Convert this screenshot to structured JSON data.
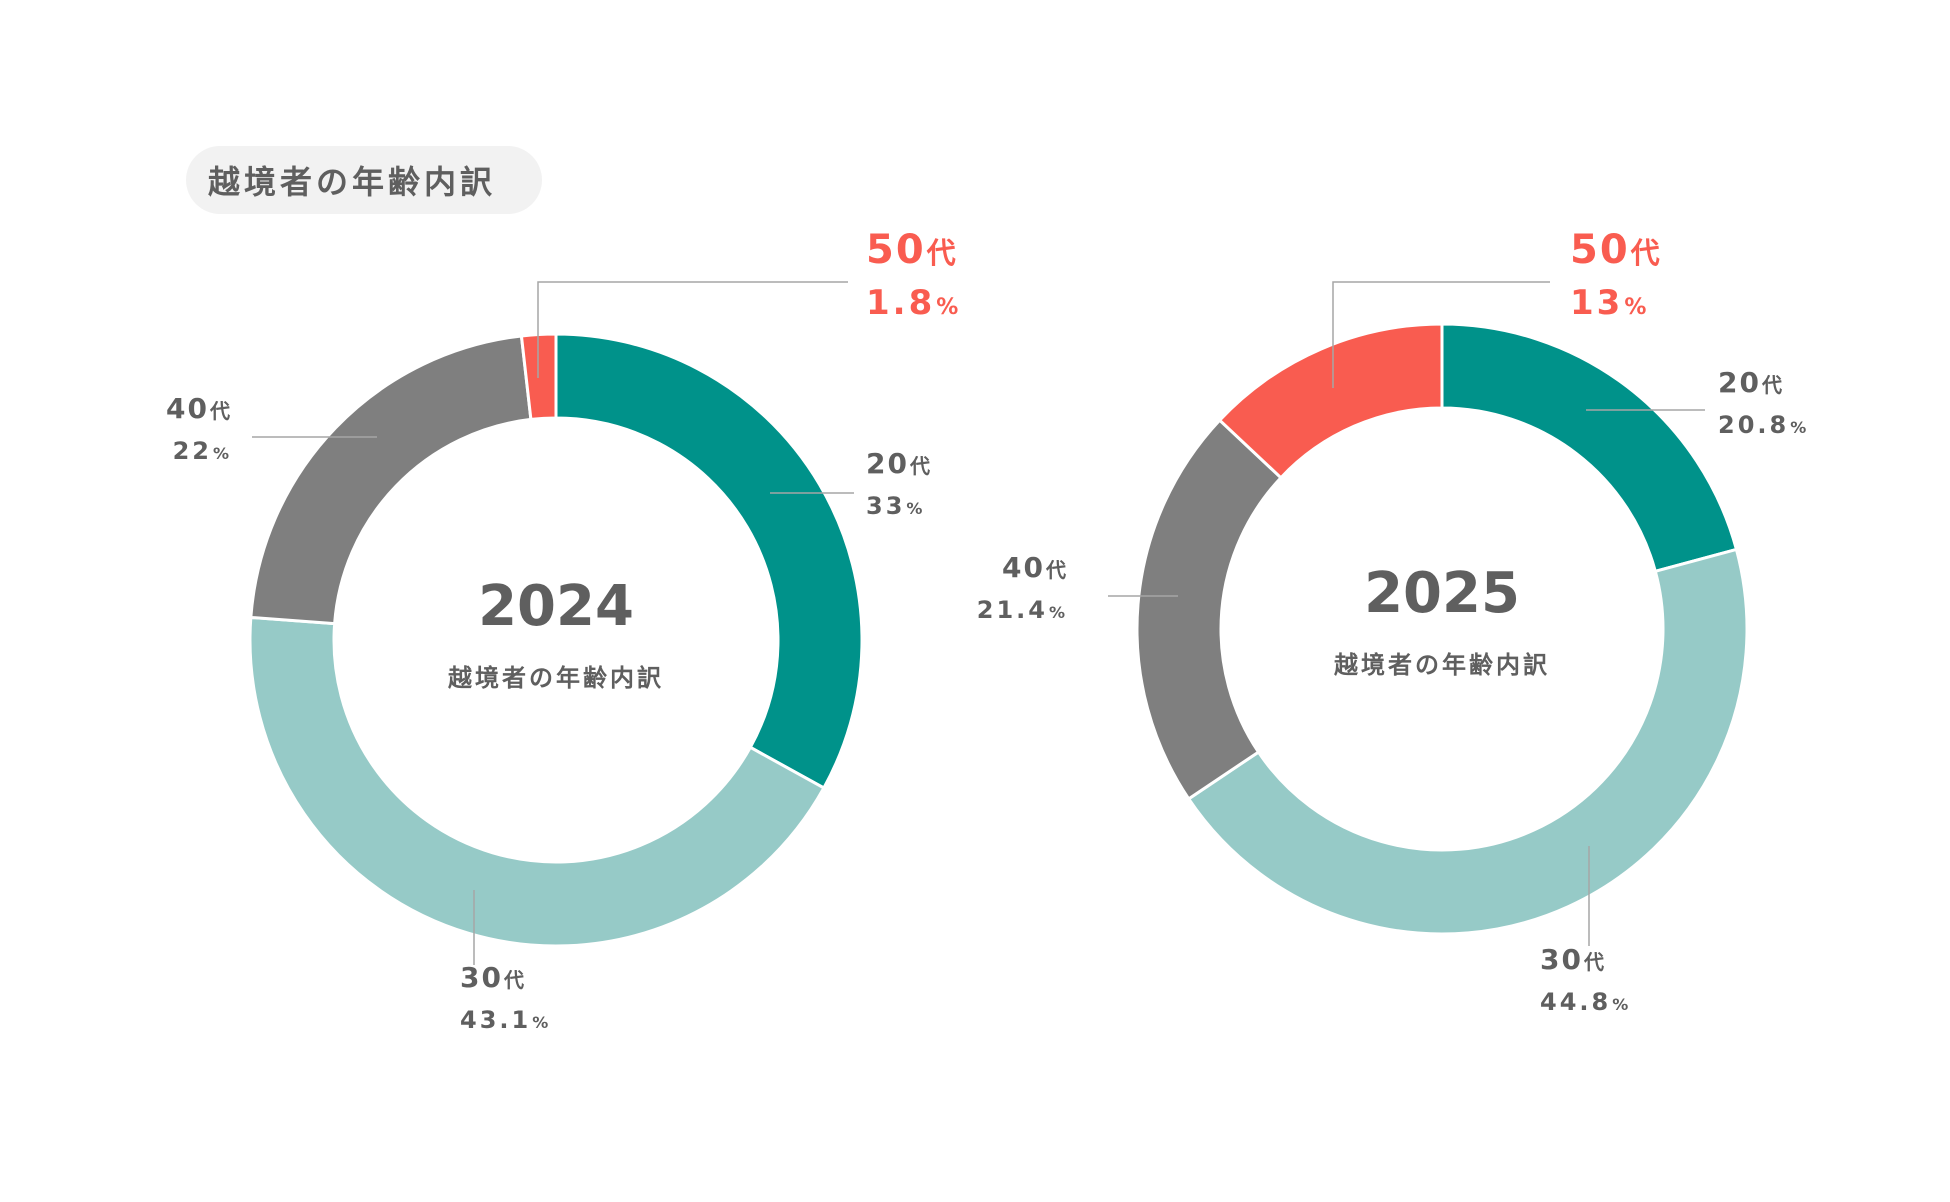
{
  "header": {
    "title": "越境者の年齢内訳"
  },
  "colors": {
    "20s": "#00928a",
    "30s": "#96cac7",
    "40s": "#7f7f7f",
    "50s": "#f95c50",
    "text": "#5f5f5f",
    "leader": "#a6a6a6"
  },
  "chart_data": [
    {
      "type": "pie",
      "center_label": "2024",
      "center_sublabel": "越境者の年齢内訳",
      "slices": [
        {
          "label": "20代",
          "value": 33,
          "value_label": "33",
          "unit": "%"
        },
        {
          "label": "30代",
          "value": 43.1,
          "value_label": "43.1",
          "unit": "%"
        },
        {
          "label": "40代",
          "value": 22,
          "value_label": "22",
          "unit": "%"
        },
        {
          "label": "50代",
          "value": 1.8,
          "value_label": "1.8",
          "unit": "%"
        }
      ]
    },
    {
      "type": "pie",
      "center_label": "2025",
      "center_sublabel": "越境者の年齢内訳",
      "slices": [
        {
          "label": "20代",
          "value": 20.8,
          "value_label": "20.8",
          "unit": "%"
        },
        {
          "label": "30代",
          "value": 44.8,
          "value_label": "44.8",
          "unit": "%"
        },
        {
          "label": "40代",
          "value": 21.4,
          "value_label": "21.4",
          "unit": "%"
        },
        {
          "label": "50代",
          "value": 13,
          "value_label": "13",
          "unit": "%"
        }
      ]
    }
  ]
}
